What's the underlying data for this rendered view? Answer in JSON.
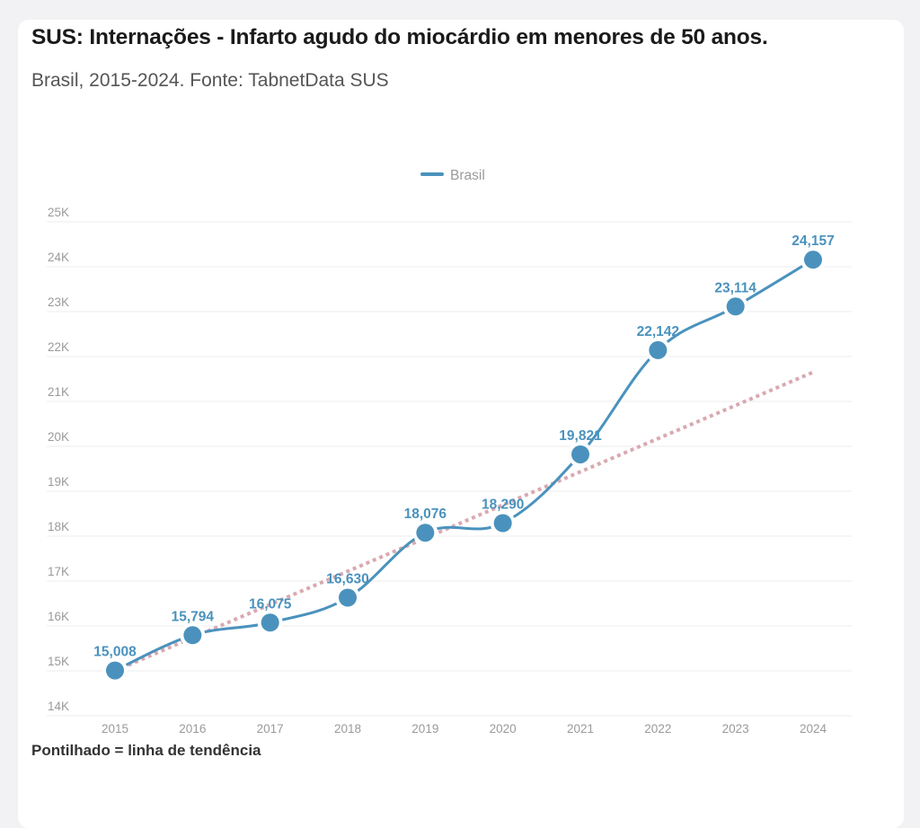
{
  "header": {
    "title": "SUS: Internações - Infarto agudo do miocárdio em menores de 50 anos.",
    "subtitle": "Brasil, 2015-2024. Fonte: TabnetData SUS"
  },
  "footnote": "Pontilhado = linha de tendência",
  "colors": {
    "series": "#4a92bd",
    "trend": "#d9a9b0",
    "grid": "#ececee",
    "tick_text": "#9a9a9a",
    "background": "#f2f2f4",
    "card": "#ffffff"
  },
  "chart_data": {
    "type": "line",
    "title": "SUS: Internações - Infarto agudo do miocárdio em menores de 50 anos.",
    "subtitle": "Brasil, 2015-2024. Fonte: TabnetData SUS",
    "xlabel": "",
    "ylabel": "",
    "categories": [
      "2015",
      "2016",
      "2017",
      "2018",
      "2019",
      "2020",
      "2021",
      "2022",
      "2023",
      "2024"
    ],
    "series": [
      {
        "name": "Brasil",
        "values": [
          15008,
          15794,
          16075,
          16630,
          18076,
          18290,
          19821,
          22142,
          23114,
          24157
        ],
        "labels": [
          "15,008",
          "15,794",
          "16,075",
          "16,630",
          "18,076",
          "18,290",
          "19,821",
          "22,142",
          "23,114",
          "24,157"
        ],
        "style": "smooth line with markers"
      }
    ],
    "trendline": {
      "name": "linha de tendência",
      "style": "dotted",
      "start": {
        "x": "2015",
        "y": 15000
      },
      "end": {
        "x": "2024",
        "y": 21650
      }
    },
    "ylim": [
      14000,
      25000
    ],
    "yticks": [
      14000,
      15000,
      16000,
      17000,
      18000,
      19000,
      20000,
      21000,
      22000,
      23000,
      24000,
      25000
    ],
    "ytick_labels": [
      "14K",
      "15K",
      "16K",
      "17K",
      "18K",
      "19K",
      "20K",
      "21K",
      "22K",
      "23K",
      "24K",
      "25K"
    ],
    "grid": true,
    "legend": {
      "position": "top-center",
      "entries": [
        "Brasil"
      ]
    },
    "annotation": "Pontilhado = linha de tendência"
  }
}
